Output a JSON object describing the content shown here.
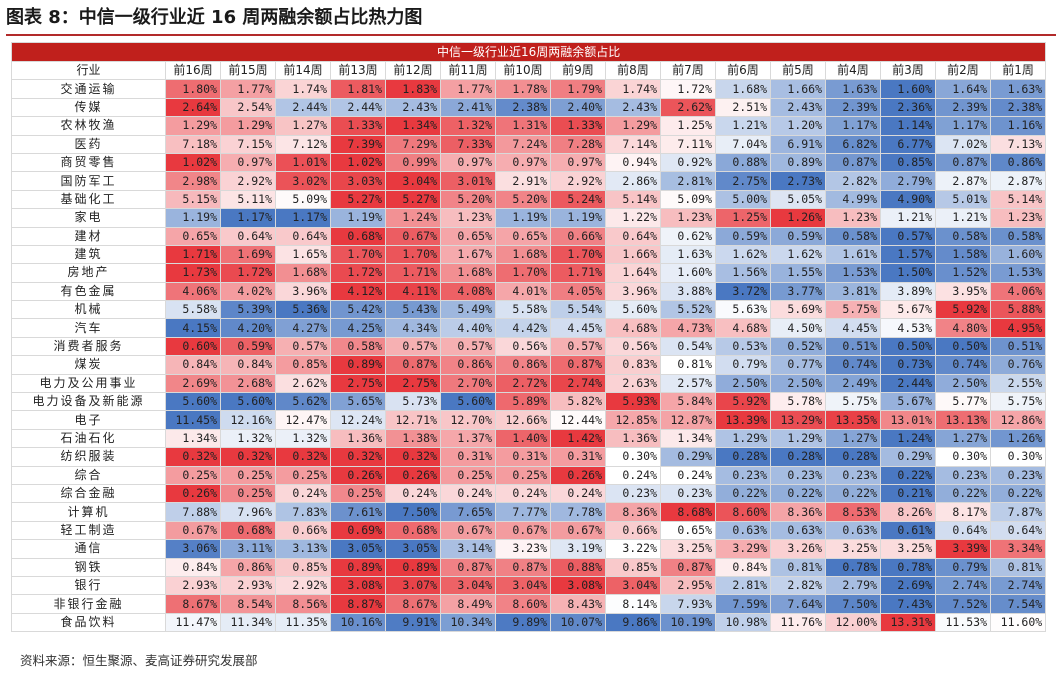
{
  "figure_title": "图表 8：中信一级行业近 16 周两融余额占比热力图",
  "footnote": "资料来源：恒生聚源、麦高证券研究发展部",
  "colors": {
    "high": "#e8393f",
    "mid": "#ffffff",
    "low": "#4a78c2",
    "header_band": "#c0201c",
    "title_rule": "#b22a2a"
  },
  "chart_data": {
    "type": "heatmap",
    "title": "中信一级行业近16周两融余额占比",
    "row_header": "行业",
    "columns": [
      "前16周",
      "前15周",
      "前14周",
      "前13周",
      "前12周",
      "前11周",
      "前10周",
      "前9周",
      "前8周",
      "前7周",
      "前6周",
      "前5周",
      "前4周",
      "前3周",
      "前2周",
      "前1周"
    ],
    "rows": [
      {
        "name": "交通运输",
        "values": [
          "1.80%",
          "1.77%",
          "1.74%",
          "1.81%",
          "1.83%",
          "1.77%",
          "1.78%",
          "1.79%",
          "1.74%",
          "1.72%",
          "1.68%",
          "1.66%",
          "1.63%",
          "1.60%",
          "1.64%",
          "1.63%"
        ]
      },
      {
        "name": "传媒",
        "values": [
          "2.64%",
          "2.54%",
          "2.44%",
          "2.44%",
          "2.43%",
          "2.41%",
          "2.38%",
          "2.40%",
          "2.43%",
          "2.62%",
          "2.51%",
          "2.43%",
          "2.39%",
          "2.36%",
          "2.39%",
          "2.38%"
        ]
      },
      {
        "name": "农林牧渔",
        "values": [
          "1.29%",
          "1.29%",
          "1.27%",
          "1.33%",
          "1.34%",
          "1.32%",
          "1.31%",
          "1.33%",
          "1.29%",
          "1.25%",
          "1.21%",
          "1.20%",
          "1.17%",
          "1.14%",
          "1.17%",
          "1.16%"
        ]
      },
      {
        "name": "医药",
        "values": [
          "7.18%",
          "7.15%",
          "7.12%",
          "7.39%",
          "7.29%",
          "7.33%",
          "7.24%",
          "7.28%",
          "7.14%",
          "7.11%",
          "7.04%",
          "6.91%",
          "6.82%",
          "6.77%",
          "7.02%",
          "7.13%"
        ]
      },
      {
        "name": "商贸零售",
        "values": [
          "1.02%",
          "0.97%",
          "1.01%",
          "1.02%",
          "0.99%",
          "0.97%",
          "0.97%",
          "0.97%",
          "0.94%",
          "0.92%",
          "0.88%",
          "0.89%",
          "0.87%",
          "0.85%",
          "0.87%",
          "0.86%"
        ]
      },
      {
        "name": "国防军工",
        "values": [
          "2.98%",
          "2.92%",
          "3.02%",
          "3.03%",
          "3.04%",
          "3.01%",
          "2.91%",
          "2.92%",
          "2.86%",
          "2.81%",
          "2.75%",
          "2.73%",
          "2.82%",
          "2.79%",
          "2.87%",
          "2.87%"
        ]
      },
      {
        "name": "基础化工",
        "values": [
          "5.15%",
          "5.11%",
          "5.09%",
          "5.27%",
          "5.27%",
          "5.20%",
          "5.20%",
          "5.24%",
          "5.14%",
          "5.09%",
          "5.00%",
          "5.05%",
          "4.99%",
          "4.90%",
          "5.01%",
          "5.14%"
        ]
      },
      {
        "name": "家电",
        "values": [
          "1.19%",
          "1.17%",
          "1.17%",
          "1.19%",
          "1.24%",
          "1.23%",
          "1.19%",
          "1.19%",
          "1.22%",
          "1.23%",
          "1.25%",
          "1.26%",
          "1.23%",
          "1.21%",
          "1.21%",
          "1.23%"
        ]
      },
      {
        "name": "建材",
        "values": [
          "0.65%",
          "0.64%",
          "0.64%",
          "0.68%",
          "0.67%",
          "0.65%",
          "0.65%",
          "0.66%",
          "0.64%",
          "0.62%",
          "0.59%",
          "0.59%",
          "0.58%",
          "0.57%",
          "0.58%",
          "0.58%"
        ]
      },
      {
        "name": "建筑",
        "values": [
          "1.71%",
          "1.69%",
          "1.65%",
          "1.70%",
          "1.70%",
          "1.67%",
          "1.68%",
          "1.70%",
          "1.66%",
          "1.63%",
          "1.62%",
          "1.62%",
          "1.61%",
          "1.57%",
          "1.58%",
          "1.60%"
        ]
      },
      {
        "name": "房地产",
        "values": [
          "1.73%",
          "1.72%",
          "1.68%",
          "1.72%",
          "1.71%",
          "1.68%",
          "1.70%",
          "1.71%",
          "1.64%",
          "1.60%",
          "1.56%",
          "1.55%",
          "1.53%",
          "1.50%",
          "1.52%",
          "1.53%"
        ]
      },
      {
        "name": "有色金属",
        "values": [
          "4.06%",
          "4.02%",
          "3.96%",
          "4.12%",
          "4.11%",
          "4.08%",
          "4.01%",
          "4.05%",
          "3.96%",
          "3.88%",
          "3.72%",
          "3.77%",
          "3.81%",
          "3.89%",
          "3.95%",
          "4.06%"
        ]
      },
      {
        "name": "机械",
        "values": [
          "5.58%",
          "5.39%",
          "5.36%",
          "5.42%",
          "5.43%",
          "5.49%",
          "5.58%",
          "5.54%",
          "5.60%",
          "5.52%",
          "5.63%",
          "5.69%",
          "5.75%",
          "5.67%",
          "5.92%",
          "5.88%"
        ]
      },
      {
        "name": "汽车",
        "values": [
          "4.15%",
          "4.20%",
          "4.27%",
          "4.25%",
          "4.34%",
          "4.40%",
          "4.42%",
          "4.45%",
          "4.68%",
          "4.73%",
          "4.68%",
          "4.50%",
          "4.45%",
          "4.53%",
          "4.80%",
          "4.95%"
        ]
      },
      {
        "name": "消费者服务",
        "values": [
          "0.60%",
          "0.59%",
          "0.57%",
          "0.58%",
          "0.57%",
          "0.57%",
          "0.56%",
          "0.57%",
          "0.56%",
          "0.54%",
          "0.53%",
          "0.52%",
          "0.51%",
          "0.50%",
          "0.50%",
          "0.51%"
        ]
      },
      {
        "name": "煤炭",
        "values": [
          "0.84%",
          "0.84%",
          "0.85%",
          "0.89%",
          "0.87%",
          "0.86%",
          "0.86%",
          "0.87%",
          "0.83%",
          "0.81%",
          "0.79%",
          "0.77%",
          "0.74%",
          "0.73%",
          "0.74%",
          "0.76%"
        ]
      },
      {
        "name": "电力及公用事业",
        "values": [
          "2.69%",
          "2.68%",
          "2.62%",
          "2.75%",
          "2.75%",
          "2.70%",
          "2.72%",
          "2.74%",
          "2.63%",
          "2.57%",
          "2.50%",
          "2.50%",
          "2.49%",
          "2.44%",
          "2.50%",
          "2.55%"
        ]
      },
      {
        "name": "电力设备及新能源",
        "values": [
          "5.60%",
          "5.60%",
          "5.62%",
          "5.65%",
          "5.73%",
          "5.60%",
          "5.89%",
          "5.82%",
          "5.93%",
          "5.84%",
          "5.92%",
          "5.78%",
          "5.75%",
          "5.67%",
          "5.77%",
          "5.75%"
        ]
      },
      {
        "name": "电子",
        "values": [
          "11.45%",
          "12.16%",
          "12.47%",
          "12.24%",
          "12.71%",
          "12.70%",
          "12.66%",
          "12.44%",
          "12.85%",
          "12.87%",
          "13.39%",
          "13.29%",
          "13.35%",
          "13.01%",
          "13.13%",
          "12.86%"
        ]
      },
      {
        "name": "石油石化",
        "values": [
          "1.34%",
          "1.32%",
          "1.32%",
          "1.36%",
          "1.38%",
          "1.37%",
          "1.40%",
          "1.42%",
          "1.36%",
          "1.34%",
          "1.29%",
          "1.29%",
          "1.27%",
          "1.24%",
          "1.27%",
          "1.26%"
        ]
      },
      {
        "name": "纺织服装",
        "values": [
          "0.32%",
          "0.32%",
          "0.32%",
          "0.32%",
          "0.32%",
          "0.31%",
          "0.31%",
          "0.31%",
          "0.30%",
          "0.29%",
          "0.28%",
          "0.28%",
          "0.28%",
          "0.29%",
          "0.30%",
          "0.30%"
        ]
      },
      {
        "name": "综合",
        "values": [
          "0.25%",
          "0.25%",
          "0.25%",
          "0.26%",
          "0.26%",
          "0.25%",
          "0.25%",
          "0.26%",
          "0.24%",
          "0.24%",
          "0.23%",
          "0.23%",
          "0.23%",
          "0.22%",
          "0.23%",
          "0.23%"
        ]
      },
      {
        "name": "综合金融",
        "values": [
          "0.26%",
          "0.25%",
          "0.24%",
          "0.25%",
          "0.24%",
          "0.24%",
          "0.24%",
          "0.24%",
          "0.23%",
          "0.23%",
          "0.22%",
          "0.22%",
          "0.22%",
          "0.21%",
          "0.22%",
          "0.22%"
        ]
      },
      {
        "name": "计算机",
        "values": [
          "7.88%",
          "7.96%",
          "7.83%",
          "7.61%",
          "7.50%",
          "7.65%",
          "7.77%",
          "7.78%",
          "8.36%",
          "8.68%",
          "8.60%",
          "8.36%",
          "8.53%",
          "8.26%",
          "8.17%",
          "7.87%"
        ]
      },
      {
        "name": "轻工制造",
        "values": [
          "0.67%",
          "0.68%",
          "0.66%",
          "0.69%",
          "0.68%",
          "0.67%",
          "0.67%",
          "0.67%",
          "0.66%",
          "0.65%",
          "0.63%",
          "0.63%",
          "0.63%",
          "0.61%",
          "0.64%",
          "0.64%"
        ]
      },
      {
        "name": "通信",
        "values": [
          "3.06%",
          "3.11%",
          "3.13%",
          "3.05%",
          "3.05%",
          "3.14%",
          "3.23%",
          "3.19%",
          "3.22%",
          "3.25%",
          "3.29%",
          "3.26%",
          "3.25%",
          "3.25%",
          "3.39%",
          "3.34%"
        ]
      },
      {
        "name": "钢铁",
        "values": [
          "0.84%",
          "0.86%",
          "0.85%",
          "0.89%",
          "0.89%",
          "0.87%",
          "0.87%",
          "0.88%",
          "0.85%",
          "0.87%",
          "0.84%",
          "0.81%",
          "0.78%",
          "0.78%",
          "0.79%",
          "0.81%"
        ]
      },
      {
        "name": "银行",
        "values": [
          "2.93%",
          "2.93%",
          "2.92%",
          "3.08%",
          "3.07%",
          "3.04%",
          "3.04%",
          "3.08%",
          "3.04%",
          "2.95%",
          "2.81%",
          "2.82%",
          "2.79%",
          "2.69%",
          "2.74%",
          "2.74%"
        ]
      },
      {
        "name": "非银行金融",
        "values": [
          "8.67%",
          "8.54%",
          "8.56%",
          "8.87%",
          "8.67%",
          "8.49%",
          "8.60%",
          "8.43%",
          "8.14%",
          "7.93%",
          "7.59%",
          "7.64%",
          "7.50%",
          "7.43%",
          "7.52%",
          "7.54%"
        ]
      },
      {
        "name": "食品饮料",
        "values": [
          "11.47%",
          "11.34%",
          "11.35%",
          "10.16%",
          "9.91%",
          "10.34%",
          "9.89%",
          "10.07%",
          "9.86%",
          "10.19%",
          "10.98%",
          "11.76%",
          "12.00%",
          "13.31%",
          "11.53%",
          "11.60%"
        ]
      }
    ]
  }
}
